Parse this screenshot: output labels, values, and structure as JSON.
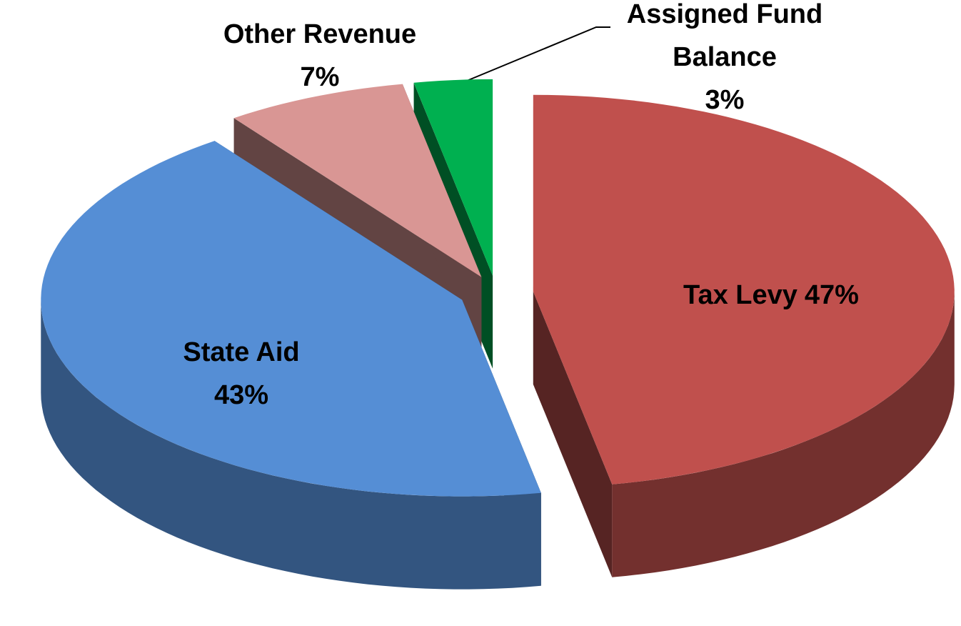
{
  "chart_data": {
    "type": "pie3d",
    "categories": [
      "Tax Levy",
      "State Aid",
      "Other Revenue",
      "Assigned Fund Balance"
    ],
    "values": [
      47,
      43,
      7,
      3
    ],
    "value_labels": [
      "47%",
      "43%",
      "7%",
      "3%"
    ],
    "colors": [
      "#c0504d",
      "#558ed5",
      "#d99694",
      "#00b050"
    ]
  }
}
